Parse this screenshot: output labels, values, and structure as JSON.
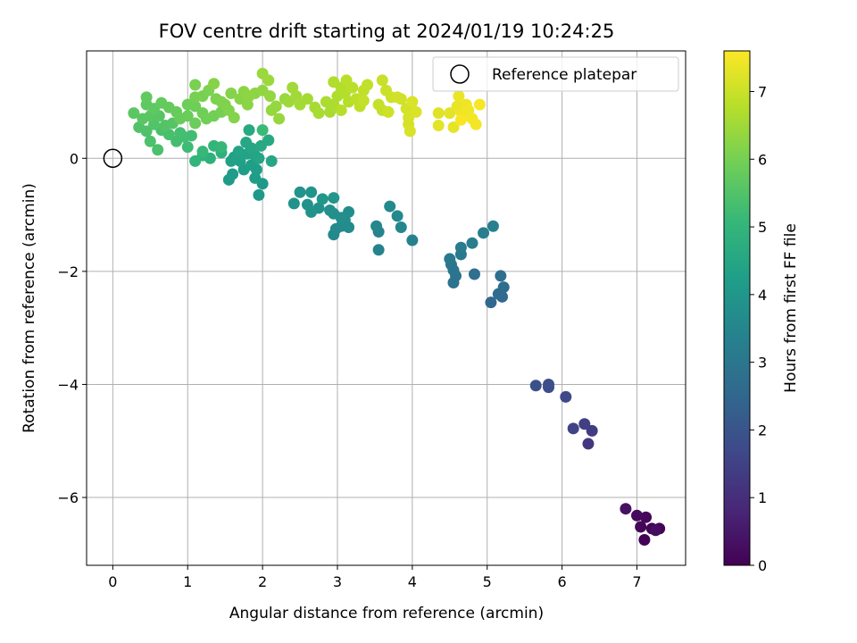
{
  "chart_data": {
    "type": "scatter",
    "title": "FOV centre drift starting at 2024/01/19 10:24:25",
    "xlabel": "Angular distance from reference (arcmin)",
    "ylabel": "Rotation from reference (arcmin)",
    "xlim": [
      -0.35,
      7.65
    ],
    "ylim": [
      -7.2,
      1.9
    ],
    "xticks": [
      0,
      1,
      2,
      3,
      4,
      5,
      6,
      7
    ],
    "yticks": [
      -6,
      -4,
      -2,
      0
    ],
    "xtick_labels": [
      "0",
      "1",
      "2",
      "3",
      "4",
      "5",
      "6",
      "7"
    ],
    "ytick_labels": [
      "−6",
      "−4",
      "−2",
      "0"
    ],
    "grid": true,
    "legend": {
      "position": "top-right",
      "label": "Reference platepar"
    },
    "reference_point": {
      "x": 0,
      "y": 0
    },
    "colorbar": {
      "label": "Hours from first FF file",
      "colormap": "viridis",
      "range": [
        0,
        7.6
      ],
      "ticks": [
        0,
        1,
        2,
        3,
        4,
        5,
        6,
        7
      ],
      "tick_labels": [
        "0",
        "1",
        "2",
        "3",
        "4",
        "5",
        "6",
        "7"
      ],
      "colors": [
        "#440154",
        "#482878",
        "#3e4989",
        "#31688e",
        "#26828e",
        "#1f9e89",
        "#35b779",
        "#6ece58",
        "#b5de2b",
        "#fde725"
      ]
    },
    "points": [
      {
        "x": 7.1,
        "y": -6.75,
        "c": 0.02
      },
      {
        "x": 7.3,
        "y": -6.55,
        "c": 0.05
      },
      {
        "x": 7.2,
        "y": -6.55,
        "c": 0.08
      },
      {
        "x": 7.05,
        "y": -6.52,
        "c": 0.1
      },
      {
        "x": 7.12,
        "y": -6.35,
        "c": 0.15
      },
      {
        "x": 7.0,
        "y": -6.32,
        "c": 0.2
      },
      {
        "x": 7.25,
        "y": -6.58,
        "c": 0.25
      },
      {
        "x": 6.85,
        "y": -6.2,
        "c": 0.35
      },
      {
        "x": 6.35,
        "y": -5.05,
        "c": 1.25
      },
      {
        "x": 6.4,
        "y": -4.82,
        "c": 1.35
      },
      {
        "x": 6.3,
        "y": -4.7,
        "c": 1.45
      },
      {
        "x": 6.15,
        "y": -4.78,
        "c": 1.55
      },
      {
        "x": 6.05,
        "y": -4.22,
        "c": 1.7
      },
      {
        "x": 5.82,
        "y": -4.05,
        "c": 1.8
      },
      {
        "x": 5.82,
        "y": -4.0,
        "c": 1.85
      },
      {
        "x": 5.65,
        "y": -4.02,
        "c": 1.9
      },
      {
        "x": 5.05,
        "y": -2.55,
        "c": 2.55
      },
      {
        "x": 5.2,
        "y": -2.45,
        "c": 2.6
      },
      {
        "x": 5.15,
        "y": -2.4,
        "c": 2.65
      },
      {
        "x": 5.22,
        "y": -2.28,
        "c": 2.7
      },
      {
        "x": 5.18,
        "y": -2.08,
        "c": 2.75
      },
      {
        "x": 4.83,
        "y": -2.05,
        "c": 2.8
      },
      {
        "x": 4.55,
        "y": -2.2,
        "c": 2.85
      },
      {
        "x": 4.58,
        "y": -2.08,
        "c": 2.9
      },
      {
        "x": 4.55,
        "y": -1.98,
        "c": 2.95
      },
      {
        "x": 4.52,
        "y": -1.88,
        "c": 3.0
      },
      {
        "x": 4.5,
        "y": -1.78,
        "c": 3.05
      },
      {
        "x": 4.65,
        "y": -1.7,
        "c": 3.1
      },
      {
        "x": 4.65,
        "y": -1.58,
        "c": 3.15
      },
      {
        "x": 4.8,
        "y": -1.5,
        "c": 3.2
      },
      {
        "x": 4.95,
        "y": -1.32,
        "c": 3.25
      },
      {
        "x": 5.08,
        "y": -1.2,
        "c": 3.3
      },
      {
        "x": 4.0,
        "y": -1.45,
        "c": 3.35
      },
      {
        "x": 3.55,
        "y": -1.62,
        "c": 3.4
      },
      {
        "x": 3.55,
        "y": -1.3,
        "c": 3.45
      },
      {
        "x": 3.52,
        "y": -1.2,
        "c": 3.5
      },
      {
        "x": 3.85,
        "y": -1.22,
        "c": 3.52
      },
      {
        "x": 3.8,
        "y": -1.02,
        "c": 3.55
      },
      {
        "x": 3.7,
        "y": -0.85,
        "c": 3.6
      },
      {
        "x": 2.95,
        "y": -1.35,
        "c": 3.6
      },
      {
        "x": 2.98,
        "y": -1.25,
        "c": 3.62
      },
      {
        "x": 3.05,
        "y": -1.2,
        "c": 3.65
      },
      {
        "x": 3.15,
        "y": -1.22,
        "c": 3.68
      },
      {
        "x": 3.1,
        "y": -1.1,
        "c": 3.7
      },
      {
        "x": 3.15,
        "y": -0.95,
        "c": 3.72
      },
      {
        "x": 3.05,
        "y": -1.05,
        "c": 3.75
      },
      {
        "x": 2.95,
        "y": -0.98,
        "c": 3.78
      },
      {
        "x": 2.9,
        "y": -0.92,
        "c": 3.8
      },
      {
        "x": 2.75,
        "y": -0.88,
        "c": 3.82
      },
      {
        "x": 2.65,
        "y": -0.95,
        "c": 3.85
      },
      {
        "x": 2.6,
        "y": -0.82,
        "c": 3.88
      },
      {
        "x": 2.42,
        "y": -0.8,
        "c": 3.9
      },
      {
        "x": 2.5,
        "y": -0.6,
        "c": 3.92
      },
      {
        "x": 2.65,
        "y": -0.6,
        "c": 3.95
      },
      {
        "x": 2.8,
        "y": -0.72,
        "c": 3.97
      },
      {
        "x": 2.95,
        "y": -0.7,
        "c": 3.98
      },
      {
        "x": 1.95,
        "y": -0.65,
        "c": 4.05
      },
      {
        "x": 2.0,
        "y": -0.45,
        "c": 4.08
      },
      {
        "x": 1.55,
        "y": -0.38,
        "c": 4.12
      },
      {
        "x": 1.6,
        "y": -0.28,
        "c": 4.15
      },
      {
        "x": 1.75,
        "y": -0.2,
        "c": 4.18
      },
      {
        "x": 1.9,
        "y": -0.35,
        "c": 4.2
      },
      {
        "x": 1.92,
        "y": -0.2,
        "c": 4.22
      },
      {
        "x": 1.85,
        "y": -0.12,
        "c": 4.25
      },
      {
        "x": 1.7,
        "y": -0.05,
        "c": 4.28
      },
      {
        "x": 1.62,
        "y": 0.02,
        "c": 4.3
      },
      {
        "x": 1.58,
        "y": -0.05,
        "c": 4.32
      },
      {
        "x": 1.72,
        "y": 0.05,
        "c": 4.35
      },
      {
        "x": 1.8,
        "y": 0.08,
        "c": 4.38
      },
      {
        "x": 1.68,
        "y": 0.12,
        "c": 4.4
      },
      {
        "x": 1.9,
        "y": 0.05,
        "c": 4.42
      },
      {
        "x": 1.95,
        "y": 0.0,
        "c": 4.45
      },
      {
        "x": 2.12,
        "y": -0.05,
        "c": 4.48
      },
      {
        "x": 1.85,
        "y": 0.18,
        "c": 4.5
      },
      {
        "x": 1.78,
        "y": 0.28,
        "c": 4.52
      },
      {
        "x": 1.98,
        "y": 0.22,
        "c": 4.55
      },
      {
        "x": 2.08,
        "y": 0.32,
        "c": 4.58
      },
      {
        "x": 1.82,
        "y": 0.5,
        "c": 4.6
      },
      {
        "x": 1.45,
        "y": 0.1,
        "c": 4.8
      },
      {
        "x": 1.3,
        "y": 0.0,
        "c": 4.85
      },
      {
        "x": 1.2,
        "y": 0.05,
        "c": 4.9
      },
      {
        "x": 1.1,
        "y": -0.05,
        "c": 4.95
      },
      {
        "x": 1.35,
        "y": 0.22,
        "c": 5.0
      },
      {
        "x": 1.45,
        "y": 0.2,
        "c": 5.05
      },
      {
        "x": 1.2,
        "y": 0.12,
        "c": 5.1
      },
      {
        "x": 2.0,
        "y": 0.5,
        "c": 5.15
      },
      {
        "x": 1.0,
        "y": 0.2,
        "c": 5.2
      },
      {
        "x": 1.05,
        "y": 0.4,
        "c": 5.25
      },
      {
        "x": 0.95,
        "y": 0.38,
        "c": 5.28
      },
      {
        "x": 0.85,
        "y": 0.3,
        "c": 5.3
      },
      {
        "x": 0.9,
        "y": 0.45,
        "c": 5.32
      },
      {
        "x": 0.75,
        "y": 0.42,
        "c": 5.35
      },
      {
        "x": 0.65,
        "y": 0.5,
        "c": 5.38
      },
      {
        "x": 0.6,
        "y": 0.15,
        "c": 5.4
      },
      {
        "x": 0.5,
        "y": 0.3,
        "c": 5.42
      },
      {
        "x": 0.45,
        "y": 0.48,
        "c": 5.45
      },
      {
        "x": 0.35,
        "y": 0.55,
        "c": 5.48
      },
      {
        "x": 0.55,
        "y": 0.6,
        "c": 5.5
      },
      {
        "x": 0.7,
        "y": 0.58,
        "c": 5.52
      },
      {
        "x": 0.8,
        "y": 0.62,
        "c": 5.55
      },
      {
        "x": 0.62,
        "y": 0.75,
        "c": 5.58
      },
      {
        "x": 0.5,
        "y": 0.75,
        "c": 5.6
      },
      {
        "x": 0.4,
        "y": 0.7,
        "c": 5.62
      },
      {
        "x": 0.28,
        "y": 0.8,
        "c": 5.65
      },
      {
        "x": 0.55,
        "y": 0.88,
        "c": 5.68
      },
      {
        "x": 0.45,
        "y": 0.95,
        "c": 5.7
      },
      {
        "x": 0.45,
        "y": 1.08,
        "c": 5.72
      },
      {
        "x": 0.65,
        "y": 0.98,
        "c": 5.75
      },
      {
        "x": 0.75,
        "y": 0.9,
        "c": 5.78
      },
      {
        "x": 0.85,
        "y": 0.82,
        "c": 5.8
      },
      {
        "x": 0.9,
        "y": 0.7,
        "c": 5.82
      },
      {
        "x": 1.0,
        "y": 0.75,
        "c": 5.84
      },
      {
        "x": 1.1,
        "y": 0.62,
        "c": 5.86
      },
      {
        "x": 1.0,
        "y": 0.95,
        "c": 5.88
      },
      {
        "x": 1.1,
        "y": 0.92,
        "c": 5.9
      },
      {
        "x": 1.2,
        "y": 0.8,
        "c": 5.92
      },
      {
        "x": 1.25,
        "y": 0.7,
        "c": 5.94
      },
      {
        "x": 1.35,
        "y": 0.75,
        "c": 5.96
      },
      {
        "x": 1.45,
        "y": 0.82,
        "c": 5.98
      },
      {
        "x": 1.1,
        "y": 1.08,
        "c": 6.0
      },
      {
        "x": 1.2,
        "y": 1.1,
        "c": 6.02
      },
      {
        "x": 1.1,
        "y": 1.3,
        "c": 6.04
      },
      {
        "x": 1.28,
        "y": 1.2,
        "c": 6.06
      },
      {
        "x": 1.38,
        "y": 1.05,
        "c": 6.08
      },
      {
        "x": 1.45,
        "y": 1.0,
        "c": 6.1
      },
      {
        "x": 1.5,
        "y": 0.95,
        "c": 6.12
      },
      {
        "x": 1.55,
        "y": 0.85,
        "c": 6.14
      },
      {
        "x": 1.62,
        "y": 0.72,
        "c": 6.16
      },
      {
        "x": 1.58,
        "y": 1.15,
        "c": 6.18
      },
      {
        "x": 1.35,
        "y": 1.32,
        "c": 6.2
      },
      {
        "x": 1.7,
        "y": 1.05,
        "c": 6.22
      },
      {
        "x": 1.8,
        "y": 0.95,
        "c": 6.24
      },
      {
        "x": 1.75,
        "y": 1.18,
        "c": 6.26
      },
      {
        "x": 1.9,
        "y": 1.15,
        "c": 6.28
      },
      {
        "x": 1.82,
        "y": 1.1,
        "c": 6.3
      },
      {
        "x": 2.0,
        "y": 1.2,
        "c": 6.32
      },
      {
        "x": 2.1,
        "y": 1.1,
        "c": 6.34
      },
      {
        "x": 2.18,
        "y": 0.92,
        "c": 6.36
      },
      {
        "x": 2.12,
        "y": 0.85,
        "c": 6.38
      },
      {
        "x": 2.22,
        "y": 0.7,
        "c": 6.4
      },
      {
        "x": 2.3,
        "y": 1.05,
        "c": 6.42
      },
      {
        "x": 2.0,
        "y": 1.5,
        "c": 6.44
      },
      {
        "x": 2.08,
        "y": 1.38,
        "c": 6.46
      },
      {
        "x": 2.35,
        "y": 1.0,
        "c": 6.48
      },
      {
        "x": 2.4,
        "y": 1.25,
        "c": 6.5
      },
      {
        "x": 2.45,
        "y": 1.1,
        "c": 6.52
      },
      {
        "x": 2.5,
        "y": 0.95,
        "c": 6.54
      },
      {
        "x": 2.6,
        "y": 1.05,
        "c": 6.56
      },
      {
        "x": 2.7,
        "y": 0.9,
        "c": 6.58
      },
      {
        "x": 2.75,
        "y": 0.8,
        "c": 6.6
      },
      {
        "x": 2.9,
        "y": 0.82,
        "c": 6.62
      },
      {
        "x": 2.85,
        "y": 1.0,
        "c": 6.64
      },
      {
        "x": 2.95,
        "y": 0.95,
        "c": 6.66
      },
      {
        "x": 3.0,
        "y": 1.1,
        "c": 6.68
      },
      {
        "x": 2.95,
        "y": 1.35,
        "c": 6.7
      },
      {
        "x": 3.05,
        "y": 1.25,
        "c": 6.72
      },
      {
        "x": 3.1,
        "y": 1.15,
        "c": 6.74
      },
      {
        "x": 3.15,
        "y": 1.0,
        "c": 6.76
      },
      {
        "x": 3.05,
        "y": 0.85,
        "c": 6.78
      },
      {
        "x": 3.12,
        "y": 1.38,
        "c": 6.8
      },
      {
        "x": 3.2,
        "y": 1.25,
        "c": 6.82
      },
      {
        "x": 3.25,
        "y": 1.05,
        "c": 6.84
      },
      {
        "x": 3.3,
        "y": 0.92,
        "c": 6.86
      },
      {
        "x": 3.35,
        "y": 1.2,
        "c": 6.88
      },
      {
        "x": 3.4,
        "y": 1.3,
        "c": 6.9
      },
      {
        "x": 3.35,
        "y": 1.02,
        "c": 6.92
      },
      {
        "x": 3.55,
        "y": 0.95,
        "c": 6.94
      },
      {
        "x": 3.6,
        "y": 0.85,
        "c": 6.96
      },
      {
        "x": 3.6,
        "y": 1.38,
        "c": 6.98
      },
      {
        "x": 3.65,
        "y": 1.2,
        "c": 7.0
      },
      {
        "x": 3.72,
        "y": 1.08,
        "c": 7.02
      },
      {
        "x": 3.68,
        "y": 0.82,
        "c": 7.04
      },
      {
        "x": 3.85,
        "y": 1.05,
        "c": 7.06
      },
      {
        "x": 3.8,
        "y": 1.08,
        "c": 7.08
      },
      {
        "x": 3.92,
        "y": 0.88,
        "c": 7.1
      },
      {
        "x": 3.95,
        "y": 0.72,
        "c": 7.12
      },
      {
        "x": 3.95,
        "y": 0.6,
        "c": 7.14
      },
      {
        "x": 3.97,
        "y": 0.48,
        "c": 7.16
      },
      {
        "x": 4.0,
        "y": 1.0,
        "c": 7.18
      },
      {
        "x": 4.05,
        "y": 0.82,
        "c": 7.2
      },
      {
        "x": 4.35,
        "y": 0.8,
        "c": 7.25
      },
      {
        "x": 4.35,
        "y": 0.58,
        "c": 7.28
      },
      {
        "x": 4.5,
        "y": 0.8,
        "c": 7.3
      },
      {
        "x": 4.55,
        "y": 0.55,
        "c": 7.32
      },
      {
        "x": 4.6,
        "y": 0.92,
        "c": 7.35
      },
      {
        "x": 4.62,
        "y": 1.1,
        "c": 7.38
      },
      {
        "x": 4.65,
        "y": 0.82,
        "c": 7.4
      },
      {
        "x": 4.7,
        "y": 0.75,
        "c": 7.42
      },
      {
        "x": 4.72,
        "y": 0.95,
        "c": 7.44
      },
      {
        "x": 4.75,
        "y": 0.85,
        "c": 7.46
      },
      {
        "x": 4.8,
        "y": 0.7,
        "c": 7.48
      },
      {
        "x": 4.85,
        "y": 0.6,
        "c": 7.5
      },
      {
        "x": 4.9,
        "y": 0.95,
        "c": 7.52
      },
      {
        "x": 4.65,
        "y": 0.68,
        "c": 7.54
      }
    ]
  }
}
